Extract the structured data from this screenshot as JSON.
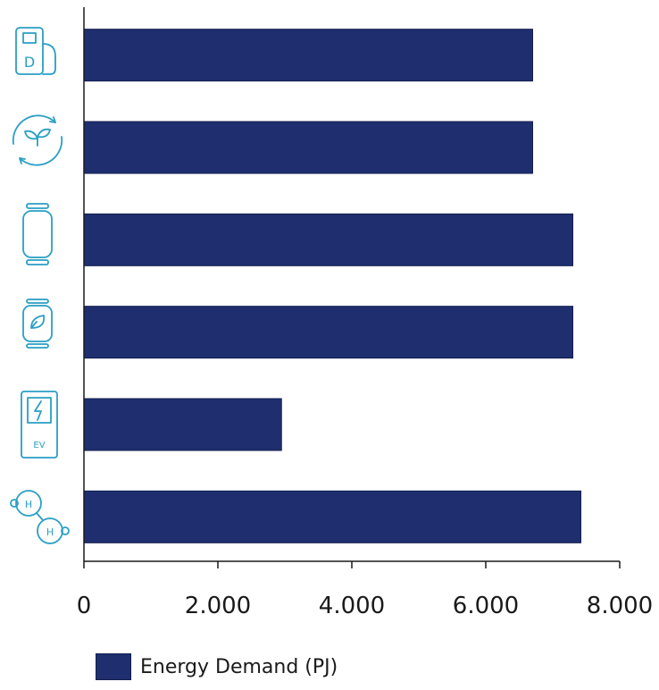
{
  "chart_data": {
    "type": "bar",
    "orientation": "horizontal",
    "categories": [
      "diesel-fuel-icon",
      "biofuel-cycle-icon",
      "gas-cylinder-icon",
      "biogas-cylinder-icon",
      "ev-charger-icon",
      "hydrogen-icon"
    ],
    "series": [
      {
        "name": "Energy Demand (PJ)",
        "values": [
          6700,
          6700,
          7300,
          7300,
          2950,
          7420
        ],
        "color": "#1e2e6e"
      }
    ],
    "x_ticks": [
      "0",
      "2.000",
      "4.000",
      "6.000",
      "8.000"
    ],
    "x_tick_values": [
      0,
      2000,
      4000,
      6000,
      8000
    ],
    "xlim": [
      0,
      8000
    ],
    "grid": false,
    "legend_position": "bottom-left"
  },
  "icons": {
    "diesel_letter": "D",
    "ev_label": "EV",
    "hydrogen_letter_1": "H",
    "hydrogen_letter_2": "H"
  }
}
